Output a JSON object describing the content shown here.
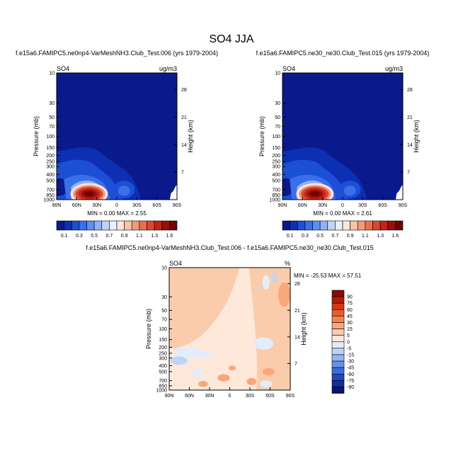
{
  "page": {
    "title": "SO4 JJA"
  },
  "chart_data": [
    {
      "type": "heatmap",
      "title": "f.e15a6.FAMIPC5.ne0np4-VarMeshNH3.Club_Test.006 (yrs 1979-2004)",
      "left_label": "SO4",
      "right_label": "ug/m3",
      "ylabel": "Pressure (mb)",
      "ylabel_right": "Height (km)",
      "x_ticks": [
        "90N",
        "60N",
        "30N",
        "0",
        "30S",
        "60S",
        "90S"
      ],
      "y_ticks": [
        "10",
        "30",
        "50",
        "70",
        "100",
        "150",
        "200",
        "250",
        "300",
        "400",
        "500",
        "700",
        "850",
        "1000"
      ],
      "y_ticks_right": [
        "28",
        "21",
        "14",
        "7"
      ],
      "stats": "MIN =   0.00  MAX =   2.55",
      "colorbar_levels": [
        "0.1",
        "0.3",
        "0.5",
        "0.7",
        "0.9",
        "1.1",
        "1.3",
        "1.6"
      ],
      "colorbar_colors": [
        "#0a1a8c",
        "#0d2fb4",
        "#1a4fd6",
        "#3a6fe8",
        "#5e8ef0",
        "#8fb2f5",
        "#bcd3fa",
        "#e7f0fd",
        "#fde6d9",
        "#f8c2a6",
        "#f19a78",
        "#e8704f",
        "#da4632",
        "#c2231b",
        "#991009",
        "#6e0500"
      ]
    },
    {
      "type": "heatmap",
      "title": "f.e15a6.FAMIPC5.ne30_ne30.Club_Test.015 (yrs 1979-2004)",
      "left_label": "SO4",
      "right_label": "ug/m3",
      "ylabel": "Pressure (mb)",
      "ylabel_right": "Height (km)",
      "x_ticks": [
        "90N",
        "60N",
        "30N",
        "0",
        "30S",
        "60S",
        "90S"
      ],
      "y_ticks": [
        "10",
        "30",
        "50",
        "70",
        "100",
        "150",
        "200",
        "250",
        "300",
        "400",
        "500",
        "700",
        "850",
        "1000"
      ],
      "y_ticks_right": [
        "28",
        "21",
        "14",
        "7"
      ],
      "stats": "MIN =   0.00  MAX =   2.61",
      "colorbar_levels": [
        "0.1",
        "0.3",
        "0.5",
        "0.7",
        "0.9",
        "1.1",
        "1.3",
        "1.6"
      ]
    },
    {
      "type": "heatmap",
      "title": "f.e15a6.FAMIPC5.ne0np4-VarMeshNH3.Club_Test.006 - f.e15a6.FAMIPC5.ne30_ne30.Club_Test.015",
      "left_label": "SO4",
      "right_label": "%",
      "ylabel": "Pressure (mb)",
      "ylabel_right": "Height (km)",
      "x_ticks": [
        "90N",
        "60N",
        "30N",
        "0",
        "30S",
        "60S",
        "90S"
      ],
      "y_ticks": [
        "10",
        "30",
        "50",
        "70",
        "100",
        "150",
        "200",
        "250",
        "300",
        "400",
        "500",
        "700",
        "850",
        "1000"
      ],
      "y_ticks_right": [
        "28",
        "21",
        "14",
        "7"
      ],
      "stats": "MIN = -25.53  MAX =  57.51",
      "colorbar_levels": [
        "90",
        "75",
        "60",
        "45",
        "30",
        "15",
        "5",
        "0",
        "-5",
        "-15",
        "-30",
        "-45",
        "-60",
        "-75",
        "-90"
      ],
      "colorbar_colors": [
        "#8c0a00",
        "#b51a08",
        "#d63516",
        "#eb5a2e",
        "#f5824f",
        "#f9a87a",
        "#fbccac",
        "#fde8da",
        "#e2edfb",
        "#bdd5f8",
        "#92b6f1",
        "#6892e8",
        "#3f6cdc",
        "#2147c4",
        "#122c9c",
        "#0a1470"
      ]
    }
  ]
}
